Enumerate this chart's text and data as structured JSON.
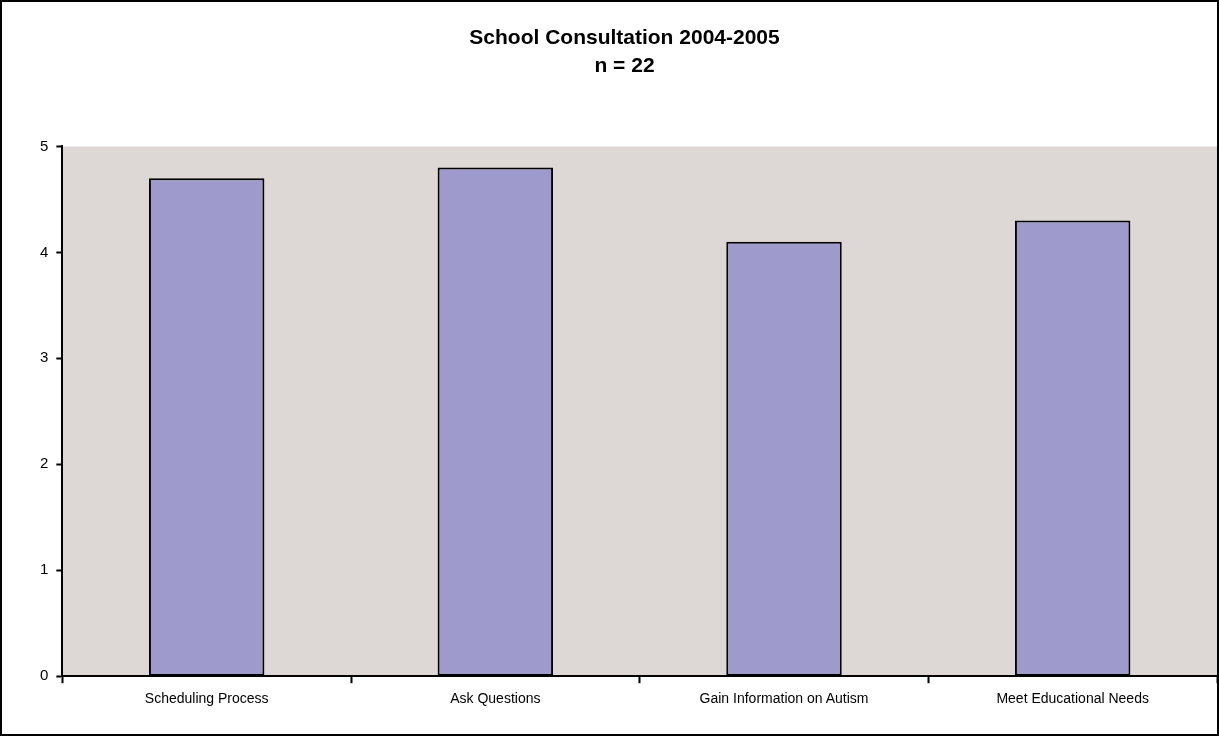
{
  "chart_data": {
    "type": "bar",
    "title": "School Consultation 2004-2005",
    "subtitle": "n = 22",
    "categories": [
      "Scheduling Process",
      "Ask Questions",
      "Gain Information on Autism",
      "Meet Educational Needs"
    ],
    "values": [
      4.7,
      4.8,
      4.1,
      4.3
    ],
    "color": "#9e9acc",
    "ylim": [
      0,
      5
    ],
    "yticks": [
      0,
      1,
      2,
      3,
      4,
      5
    ],
    "grid": false,
    "legend": false
  }
}
